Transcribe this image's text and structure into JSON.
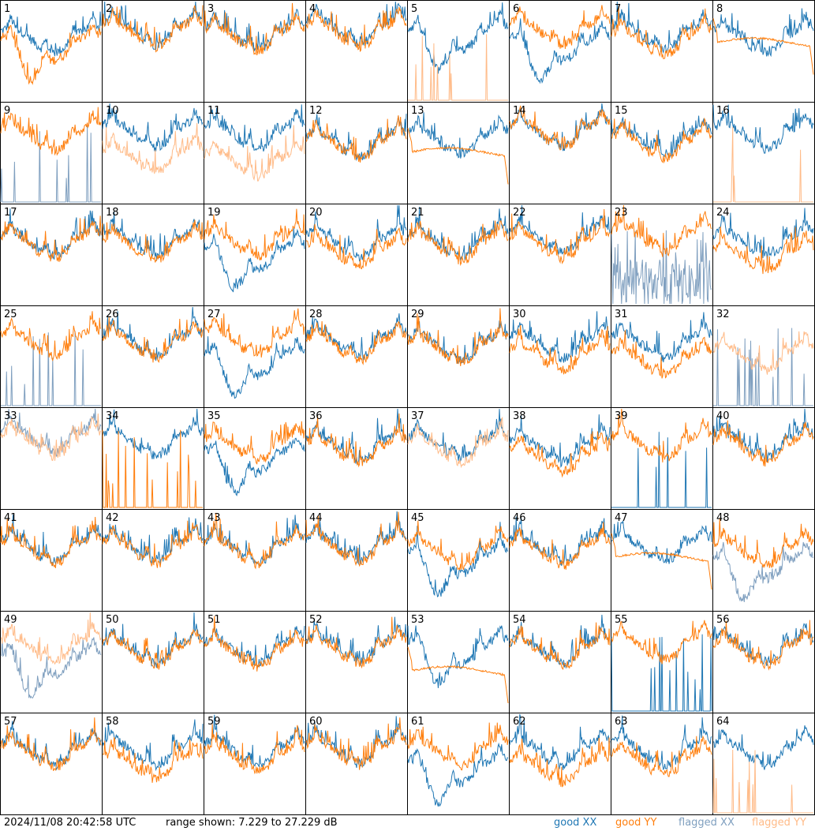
{
  "chart_data": {
    "type": "line",
    "title": "",
    "xlabel": "",
    "ylabel": "",
    "ylim": [
      7.229,
      27.229
    ],
    "grid": false,
    "legend_placement": "bottom-right",
    "series_legend": [
      {
        "name": "good XX",
        "color": "#1f77b4"
      },
      {
        "name": "good YY",
        "color": "#ff7f0e"
      },
      {
        "name": "flagged XX",
        "color": "#7f9fbf"
      },
      {
        "name": "flagged YY",
        "color": "#ffbb88"
      }
    ],
    "panels": [
      {
        "label": "1",
        "xx": "good",
        "yy": "good",
        "xx_level": 0.62,
        "yy_level": 0.55,
        "xx_shape": "normal",
        "yy_shape": "dip"
      },
      {
        "label": "2",
        "xx": "good",
        "yy": "good",
        "xx_level": 0.7,
        "yy_level": 0.68,
        "xx_shape": "normal",
        "yy_shape": "normal"
      },
      {
        "label": "3",
        "xx": "good",
        "yy": "good",
        "xx_level": 0.66,
        "yy_level": 0.64,
        "xx_shape": "normal",
        "yy_shape": "normal"
      },
      {
        "label": "4",
        "xx": "good",
        "yy": "good",
        "xx_level": 0.72,
        "yy_level": 0.68,
        "xx_shape": "normal",
        "yy_shape": "normal"
      },
      {
        "label": "5",
        "xx": "good",
        "yy": "flagged",
        "xx_level": 0.65,
        "yy_level": 0.0,
        "xx_shape": "dip",
        "yy_shape": "spikes"
      },
      {
        "label": "6",
        "xx": "good",
        "yy": "good",
        "xx_level": 0.55,
        "yy_level": 0.7,
        "xx_shape": "dip",
        "yy_shape": "normal"
      },
      {
        "label": "7",
        "xx": "good",
        "yy": "good",
        "xx_level": 0.66,
        "yy_level": 0.6,
        "xx_shape": "normal",
        "yy_shape": "normal"
      },
      {
        "label": "8",
        "xx": "good",
        "yy": "good",
        "xx_level": 0.62,
        "yy_level": 0.58,
        "xx_shape": "normal",
        "yy_shape": "smooth"
      },
      {
        "label": "9",
        "xx": "flagged",
        "yy": "good",
        "xx_level": 0.0,
        "yy_level": 0.66,
        "xx_shape": "spikes",
        "yy_shape": "normal"
      },
      {
        "label": "10",
        "xx": "good",
        "yy": "flagged",
        "xx_level": 0.7,
        "yy_level": 0.45,
        "xx_shape": "normal",
        "yy_shape": "normal"
      },
      {
        "label": "11",
        "xx": "good",
        "yy": "flagged",
        "xx_level": 0.68,
        "yy_level": 0.4,
        "xx_shape": "normal",
        "yy_shape": "normal"
      },
      {
        "label": "12",
        "xx": "good",
        "yy": "good",
        "xx_level": 0.6,
        "yy_level": 0.58,
        "xx_shape": "normal",
        "yy_shape": "normal"
      },
      {
        "label": "13",
        "xx": "good",
        "yy": "good",
        "xx_level": 0.62,
        "yy_level": 0.5,
        "xx_shape": "normal",
        "yy_shape": "smooth"
      },
      {
        "label": "14",
        "xx": "good",
        "yy": "good",
        "xx_level": 0.7,
        "yy_level": 0.7,
        "xx_shape": "normal",
        "yy_shape": "normal"
      },
      {
        "label": "15",
        "xx": "good",
        "yy": "good",
        "xx_level": 0.62,
        "yy_level": 0.58,
        "xx_shape": "normal",
        "yy_shape": "normal"
      },
      {
        "label": "16",
        "xx": "good",
        "yy": "flagged",
        "xx_level": 0.68,
        "yy_level": 0.0,
        "xx_shape": "normal",
        "yy_shape": "spikes"
      },
      {
        "label": "17",
        "xx": "good",
        "yy": "good",
        "xx_level": 0.62,
        "yy_level": 0.6,
        "xx_shape": "normal",
        "yy_shape": "normal"
      },
      {
        "label": "18",
        "xx": "good",
        "yy": "good",
        "xx_level": 0.62,
        "yy_level": 0.58,
        "xx_shape": "normal",
        "yy_shape": "normal"
      },
      {
        "label": "19",
        "xx": "good",
        "yy": "good",
        "xx_level": 0.5,
        "yy_level": 0.62,
        "xx_shape": "dip",
        "yy_shape": "normal"
      },
      {
        "label": "20",
        "xx": "good",
        "yy": "good",
        "xx_level": 0.62,
        "yy_level": 0.52,
        "xx_shape": "normal",
        "yy_shape": "normal"
      },
      {
        "label": "21",
        "xx": "good",
        "yy": "good",
        "xx_level": 0.62,
        "yy_level": 0.58,
        "xx_shape": "normal",
        "yy_shape": "normal"
      },
      {
        "label": "22",
        "xx": "good",
        "yy": "good",
        "xx_level": 0.66,
        "yy_level": 0.6,
        "xx_shape": "normal",
        "yy_shape": "normal"
      },
      {
        "label": "23",
        "xx": "flagged",
        "yy": "good",
        "xx_level": 0.2,
        "yy_level": 0.66,
        "xx_shape": "noisy",
        "yy_shape": "normal"
      },
      {
        "label": "24",
        "xx": "good",
        "yy": "good",
        "xx_level": 0.62,
        "yy_level": 0.48,
        "xx_shape": "normal",
        "yy_shape": "normal"
      },
      {
        "label": "25",
        "xx": "flagged",
        "yy": "good",
        "xx_level": 0.0,
        "yy_level": 0.64,
        "xx_shape": "spikes",
        "yy_shape": "normal"
      },
      {
        "label": "26",
        "xx": "good",
        "yy": "good",
        "xx_level": 0.64,
        "yy_level": 0.62,
        "xx_shape": "normal",
        "yy_shape": "normal"
      },
      {
        "label": "27",
        "xx": "good",
        "yy": "good",
        "xx_level": 0.45,
        "yy_level": 0.66,
        "xx_shape": "dip",
        "yy_shape": "normal"
      },
      {
        "label": "28",
        "xx": "good",
        "yy": "good",
        "xx_level": 0.64,
        "yy_level": 0.6,
        "xx_shape": "normal",
        "yy_shape": "normal"
      },
      {
        "label": "29",
        "xx": "good",
        "yy": "good",
        "xx_level": 0.6,
        "yy_level": 0.58,
        "xx_shape": "normal",
        "yy_shape": "normal"
      },
      {
        "label": "30",
        "xx": "good",
        "yy": "good",
        "xx_level": 0.62,
        "yy_level": 0.5,
        "xx_shape": "normal",
        "yy_shape": "normal"
      },
      {
        "label": "31",
        "xx": "good",
        "yy": "good",
        "xx_level": 0.62,
        "yy_level": 0.45,
        "xx_shape": "normal",
        "yy_shape": "normal"
      },
      {
        "label": "32",
        "xx": "flagged",
        "yy": "flagged",
        "xx_level": 0.0,
        "yy_level": 0.5,
        "xx_shape": "spikes",
        "yy_shape": "normal"
      },
      {
        "label": "33",
        "xx": "flagged",
        "yy": "flagged",
        "xx_level": 0.7,
        "yy_level": 0.66,
        "xx_shape": "normal",
        "yy_shape": "normal"
      },
      {
        "label": "34",
        "xx": "good",
        "yy": "good",
        "xx_level": 0.66,
        "yy_level": 0.0,
        "xx_shape": "normal",
        "yy_shape": "spikes"
      },
      {
        "label": "35",
        "xx": "good",
        "yy": "good",
        "xx_level": 0.5,
        "yy_level": 0.62,
        "xx_shape": "dip",
        "yy_shape": "normal"
      },
      {
        "label": "36",
        "xx": "good",
        "yy": "good",
        "xx_level": 0.62,
        "yy_level": 0.58,
        "xx_shape": "normal",
        "yy_shape": "normal"
      },
      {
        "label": "37",
        "xx": "good",
        "yy": "flagged",
        "xx_level": 0.64,
        "yy_level": 0.6,
        "xx_shape": "normal",
        "yy_shape": "normal"
      },
      {
        "label": "38",
        "xx": "good",
        "yy": "good",
        "xx_level": 0.6,
        "yy_level": 0.5,
        "xx_shape": "normal",
        "yy_shape": "normal"
      },
      {
        "label": "39",
        "xx": "good",
        "yy": "good",
        "xx_level": 0.0,
        "yy_level": 0.64,
        "xx_shape": "spikes",
        "yy_shape": "normal"
      },
      {
        "label": "40",
        "xx": "good",
        "yy": "good",
        "xx_level": 0.64,
        "yy_level": 0.6,
        "xx_shape": "normal",
        "yy_shape": "normal"
      },
      {
        "label": "41",
        "xx": "good",
        "yy": "good",
        "xx_level": 0.62,
        "yy_level": 0.6,
        "xx_shape": "normal",
        "yy_shape": "normal"
      },
      {
        "label": "42",
        "xx": "good",
        "yy": "good",
        "xx_level": 0.62,
        "yy_level": 0.6,
        "xx_shape": "normal",
        "yy_shape": "normal"
      },
      {
        "label": "43",
        "xx": "good",
        "yy": "good",
        "xx_level": 0.62,
        "yy_level": 0.6,
        "xx_shape": "normal",
        "yy_shape": "normal"
      },
      {
        "label": "44",
        "xx": "good",
        "yy": "good",
        "xx_level": 0.64,
        "yy_level": 0.62,
        "xx_shape": "normal",
        "yy_shape": "normal"
      },
      {
        "label": "45",
        "xx": "good",
        "yy": "good",
        "xx_level": 0.5,
        "yy_level": 0.58,
        "xx_shape": "dip",
        "yy_shape": "normal"
      },
      {
        "label": "46",
        "xx": "good",
        "yy": "good",
        "xx_level": 0.62,
        "yy_level": 0.58,
        "xx_shape": "normal",
        "yy_shape": "normal"
      },
      {
        "label": "47",
        "xx": "good",
        "yy": "good",
        "xx_level": 0.62,
        "yy_level": 0.52,
        "xx_shape": "normal",
        "yy_shape": "smooth"
      },
      {
        "label": "48",
        "xx": "flagged",
        "yy": "good",
        "xx_level": 0.45,
        "yy_level": 0.58,
        "xx_shape": "dip",
        "yy_shape": "normal"
      },
      {
        "label": "49",
        "xx": "flagged",
        "yy": "flagged",
        "xx_level": 0.5,
        "yy_level": 0.64,
        "xx_shape": "dip",
        "yy_shape": "normal"
      },
      {
        "label": "50",
        "xx": "good",
        "yy": "good",
        "xx_level": 0.62,
        "yy_level": 0.6,
        "xx_shape": "normal",
        "yy_shape": "normal"
      },
      {
        "label": "51",
        "xx": "good",
        "yy": "good",
        "xx_level": 0.62,
        "yy_level": 0.58,
        "xx_shape": "normal",
        "yy_shape": "normal"
      },
      {
        "label": "52",
        "xx": "good",
        "yy": "good",
        "xx_level": 0.64,
        "yy_level": 0.62,
        "xx_shape": "normal",
        "yy_shape": "normal"
      },
      {
        "label": "53",
        "xx": "good",
        "yy": "good",
        "xx_level": 0.62,
        "yy_level": 0.4,
        "xx_shape": "dip",
        "yy_shape": "smooth"
      },
      {
        "label": "54",
        "xx": "good",
        "yy": "good",
        "xx_level": 0.62,
        "yy_level": 0.6,
        "xx_shape": "normal",
        "yy_shape": "normal"
      },
      {
        "label": "55",
        "xx": "good",
        "yy": "good",
        "xx_level": 0.0,
        "yy_level": 0.66,
        "xx_shape": "spikes",
        "yy_shape": "normal"
      },
      {
        "label": "56",
        "xx": "good",
        "yy": "good",
        "xx_level": 0.64,
        "yy_level": 0.6,
        "xx_shape": "normal",
        "yy_shape": "normal"
      },
      {
        "label": "57",
        "xx": "good",
        "yy": "good",
        "xx_level": 0.62,
        "yy_level": 0.6,
        "xx_shape": "normal",
        "yy_shape": "normal"
      },
      {
        "label": "58",
        "xx": "good",
        "yy": "good",
        "xx_level": 0.62,
        "yy_level": 0.48,
        "xx_shape": "normal",
        "yy_shape": "normal"
      },
      {
        "label": "59",
        "xx": "good",
        "yy": "good",
        "xx_level": 0.62,
        "yy_level": 0.56,
        "xx_shape": "normal",
        "yy_shape": "normal"
      },
      {
        "label": "60",
        "xx": "good",
        "yy": "good",
        "xx_level": 0.64,
        "yy_level": 0.62,
        "xx_shape": "normal",
        "yy_shape": "normal"
      },
      {
        "label": "61",
        "xx": "good",
        "yy": "good",
        "xx_level": 0.45,
        "yy_level": 0.62,
        "xx_shape": "dip",
        "yy_shape": "normal"
      },
      {
        "label": "62",
        "xx": "good",
        "yy": "good",
        "xx_level": 0.62,
        "yy_level": 0.45,
        "xx_shape": "normal",
        "yy_shape": "normal"
      },
      {
        "label": "63",
        "xx": "good",
        "yy": "good",
        "xx_level": 0.62,
        "yy_level": 0.52,
        "xx_shape": "normal",
        "yy_shape": "normal"
      },
      {
        "label": "64",
        "xx": "good",
        "yy": "flagged",
        "xx_level": 0.62,
        "yy_level": 0.0,
        "xx_shape": "normal",
        "yy_shape": "spikes"
      }
    ]
  },
  "footer": {
    "timestamp": "2024/11/08 20:42:58 UTC",
    "range_text": "range shown: 7.229 to 27.229 dB",
    "legend": {
      "good_xx": "good XX",
      "good_yy": "good YY",
      "flagged_xx": "flagged XX",
      "flagged_yy": "flagged YY"
    }
  },
  "colors": {
    "good_xx": "#1f77b4",
    "good_yy": "#ff7f0e",
    "flagged_xx": "#7f9fbf",
    "flagged_yy": "#ffbb88",
    "border": "#000000"
  }
}
